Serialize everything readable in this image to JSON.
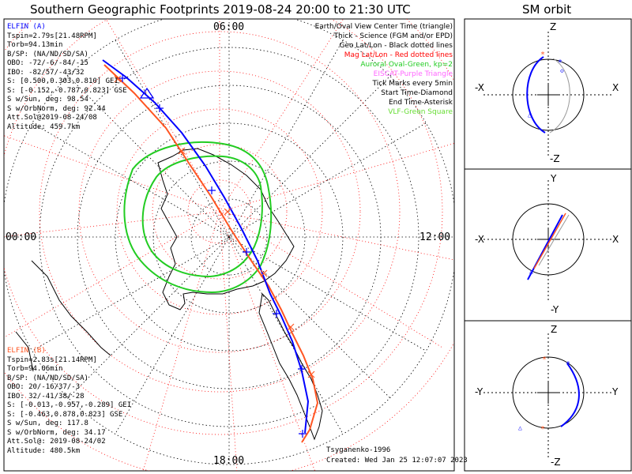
{
  "header": {
    "title": "Southern Geographic Footprints 2019-08-24 20:00 to 21:30 UTC",
    "orbit_title": "SM orbit"
  },
  "map": {
    "hour_top": "06:00",
    "hour_left": "00:00",
    "hour_right": "12:00",
    "hour_bottom": "18:00"
  },
  "legend": [
    {
      "text": "Earth/Oval View Center Time (triangle)",
      "color": "#000000"
    },
    {
      "text": "Thick - Science (FGM and/or EPD)",
      "color": "#000000"
    },
    {
      "text": "Geo Lat/Lon - Black dotted lines",
      "color": "#000000"
    },
    {
      "text": "Mag Lat/Lon - Red dotted lines",
      "color": "#ff0000"
    },
    {
      "text": "Auroral Oval-Green, kp=2",
      "color": "#22cc22"
    },
    {
      "text": "EISCAT-Purple Triangle",
      "color": "#ff66ff"
    },
    {
      "text": "Tick Marks every 5min",
      "color": "#000000"
    },
    {
      "text": "Start Time-Diamond",
      "color": "#000000"
    },
    {
      "text": "End Time-Asterisk",
      "color": "#000000"
    },
    {
      "text": "VLF-Green Square",
      "color": "#66dd33"
    }
  ],
  "elfin_a": {
    "name": "ELFIN (A)",
    "color": "#0000ff",
    "lines": [
      "Tspin=2.79s[21.48RPM]",
      "Torb=94.13min",
      "B/SP: (NA/ND/SD/SA)",
      "OBO: -72/-6/-84/-15",
      "IBO: -82/57/-43/32",
      "S: [0.500,0.303,0.810] GEI",
      "S: [-0.152,-0.787,0.823] GSE",
      "S w/Sun, deg: 98.54",
      "S w/OrbNorm, deg: 92.44",
      "Att.Sol@2019-08-24/08",
      "Altitude: 459.7km"
    ]
  },
  "elfin_b": {
    "name": "ELFIN (B)",
    "color": "#ff5522",
    "lines": [
      "Tspin=2.83s[21.14RPM]",
      "Torb=94.06min",
      "B/SP: (NA/ND/SD/SA)",
      "OBO: 20/-16/37/-3",
      "IBO: 32/-41/38/-28",
      "S: [-0.013,-0.957,-0.289] GEI",
      "S: [-0.463,0.878,0.823] GSE",
      "S w/Sun, deg: 117.8",
      "S w/OrbNorm, deg: 34.17",
      "Att.Sol@: 2019-08-24/02",
      "Altitude: 480.5km"
    ]
  },
  "footer": {
    "author": "Tsyganenko-1996",
    "created": "Created: Wed Jan 25 12:07:07 2023"
  },
  "orbit_panels": [
    {
      "top": "Z",
      "bottom": "-Z",
      "left": "-X",
      "right": "X"
    },
    {
      "top": "Y",
      "bottom": "-Y",
      "left": "-X",
      "right": "X"
    },
    {
      "top": "Z",
      "bottom": "-Z",
      "left": "-Y",
      "right": "Y"
    }
  ],
  "colors": {
    "elfin_a": "#0000ff",
    "elfin_b": "#ff5522",
    "oval": "#22cc22",
    "mag_grid": "#ff0000"
  }
}
